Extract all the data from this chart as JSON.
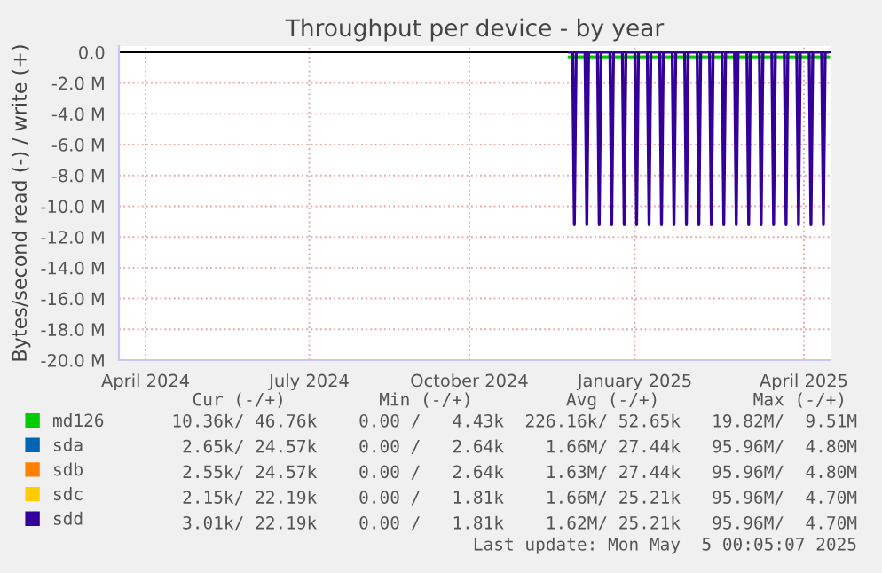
{
  "chart_data": {
    "type": "line",
    "title": "Throughput per device - by year",
    "ylabel": "Bytes/second read (-) / write (+)",
    "x": [
      "2024-12-09",
      "2024-12-11",
      "2024-12-12",
      "2024-12-13",
      "2024-12-18",
      "2024-12-19",
      "2024-12-20",
      "2024-12-25",
      "2024-12-26",
      "2024-12-27",
      "2025-01-01",
      "2025-01-02",
      "2025-01-03",
      "2025-01-08",
      "2025-01-09",
      "2025-01-10",
      "2025-01-15",
      "2025-01-16",
      "2025-01-17",
      "2025-01-22",
      "2025-01-23",
      "2025-01-24",
      "2025-01-29",
      "2025-01-30",
      "2025-01-31",
      "2025-02-05",
      "2025-02-06",
      "2025-02-07",
      "2025-02-12",
      "2025-02-13",
      "2025-02-14",
      "2025-02-19",
      "2025-02-20",
      "2025-02-21",
      "2025-02-26",
      "2025-02-27",
      "2025-02-28",
      "2025-03-05",
      "2025-03-06",
      "2025-03-07",
      "2025-03-12",
      "2025-03-13",
      "2025-03-14",
      "2025-03-19",
      "2025-03-20",
      "2025-03-21",
      "2025-03-26",
      "2025-03-27",
      "2025-03-28",
      "2025-04-02",
      "2025-04-03",
      "2025-04-04",
      "2025-04-09",
      "2025-04-10",
      "2025-04-11",
      "2025-04-16",
      "2025-04-17",
      "2025-04-18",
      "2025-04-23",
      "2025-04-24",
      "2025-04-25",
      "2025-04-30",
      "2025-05-01",
      "2025-05-02",
      "2025-05-04"
    ],
    "series": [
      {
        "name": "md126",
        "color": "#00cc00",
        "x": [
          "2024-12-09",
          "2025-05-04"
        ],
        "values": [
          -0.3,
          -0.3
        ]
      },
      {
        "name": "sda",
        "color": "#0066b3",
        "values": [
          null,
          null,
          null,
          null,
          null,
          null,
          null,
          null,
          null,
          null,
          null,
          null,
          null,
          null,
          null,
          null,
          null,
          null,
          null,
          null,
          null,
          null,
          null,
          null,
          null,
          null,
          null,
          null,
          null,
          null,
          null,
          null,
          null,
          null,
          null,
          null,
          null,
          null,
          null,
          null,
          null,
          null,
          null,
          null,
          null,
          null,
          null,
          null,
          null,
          null,
          null,
          null,
          null,
          null,
          null,
          null,
          null,
          null,
          null,
          null,
          null,
          null,
          null,
          null,
          null
        ]
      },
      {
        "name": "sdb",
        "color": "#ff8000",
        "values": [
          null,
          null,
          null,
          null,
          null,
          null,
          null,
          null,
          null,
          null,
          null,
          null,
          null,
          null,
          null,
          null,
          null,
          null,
          null,
          null,
          null,
          null,
          null,
          null,
          null,
          null,
          null,
          null,
          null,
          null,
          null,
          null,
          null,
          null,
          null,
          null,
          null,
          null,
          null,
          null,
          null,
          null,
          null,
          null,
          null,
          null,
          null,
          null,
          null,
          null,
          null,
          null,
          null,
          null,
          null,
          null,
          null,
          null,
          null,
          null,
          null,
          null,
          null,
          null,
          null
        ]
      },
      {
        "name": "sdc",
        "color": "#ffcc00",
        "values": [
          null,
          null,
          null,
          null,
          null,
          null,
          null,
          null,
          null,
          null,
          null,
          null,
          null,
          null,
          null,
          null,
          null,
          null,
          null,
          null,
          null,
          null,
          null,
          null,
          null,
          null,
          null,
          null,
          null,
          null,
          null,
          null,
          null,
          null,
          null,
          null,
          null,
          null,
          null,
          null,
          null,
          null,
          null,
          null,
          null,
          null,
          null,
          null,
          null,
          null,
          null,
          null,
          null,
          null,
          null,
          null,
          null,
          null,
          null,
          null,
          null,
          null,
          null,
          null,
          null
        ]
      },
      {
        "name": "sdd",
        "color": "#330099",
        "values": [
          0,
          0,
          -11.2,
          0,
          0,
          -11.2,
          0,
          0,
          -11.2,
          0,
          0,
          -11.2,
          0,
          0,
          -11.2,
          0,
          0,
          -11.2,
          0,
          0,
          -11.2,
          0,
          0,
          -11.2,
          0,
          0,
          -11.2,
          0,
          0,
          -11.2,
          0,
          0,
          -11.2,
          0,
          0,
          -11.2,
          0,
          0,
          -11.2,
          0,
          0,
          -11.2,
          0,
          0,
          -11.2,
          0,
          0,
          -11.2,
          0,
          0,
          -11.2,
          0,
          0,
          -11.2,
          0,
          0,
          -11.2,
          0,
          0,
          -11.2,
          0,
          0,
          -11.2,
          0,
          0
        ]
      }
    ],
    "xlim": [
      "2024-03-31",
      "2025-05-05"
    ],
    "xticks": [
      {
        "value": "2024-04-15",
        "label": "April 2024"
      },
      {
        "value": "2024-07-16",
        "label": "July 2024"
      },
      {
        "value": "2024-10-14",
        "label": "October 2024"
      },
      {
        "value": "2025-01-15",
        "label": "January 2025"
      },
      {
        "value": "2025-04-20",
        "label": "April 2025"
      }
    ],
    "ylim": [
      -20,
      0.4
    ],
    "yticks": [
      {
        "value": 0,
        "label": "0.0"
      },
      {
        "value": -2,
        "label": "-2.0 M"
      },
      {
        "value": -4,
        "label": "-4.0 M"
      },
      {
        "value": -6,
        "label": "-6.0 M"
      },
      {
        "value": -8,
        "label": "-8.0 M"
      },
      {
        "value": -10,
        "label": "-10.0 M"
      },
      {
        "value": -12,
        "label": "-12.0 M"
      },
      {
        "value": -14,
        "label": "-14.0 M"
      },
      {
        "value": -16,
        "label": "-16.0 M"
      },
      {
        "value": -18,
        "label": "-18.0 M"
      },
      {
        "value": -20,
        "label": "-20.0 M"
      }
    ],
    "grid": true,
    "legend": "bottom",
    "marker": "none",
    "line_style": "solid",
    "annotations": [
      "Cur (-/+)         Min (-/+)         Avg (-/+)         Max (-/+)",
      "10.36k/ 46.76k    0.00 /   4.43k  226.16k/ 52.65k   19.82M/  9.51M",
      "2.65k/ 24.57k    0.00 /   2.64k    1.66M/ 27.44k   95.96M/  4.80M",
      "2.55k/ 24.57k    0.00 /   2.64k    1.63M/ 27.44k   95.96M/  4.80M",
      "2.15k/ 22.19k    0.00 /   1.81k    1.66M/ 25.21k   95.96M/  4.70M",
      "3.01k/ 22.19k    0.00 /   1.81k    1.62M/ 25.21k   95.96M/  4.70M",
      "Last update: Mon May  5 00:05:07 2025"
    ]
  }
}
